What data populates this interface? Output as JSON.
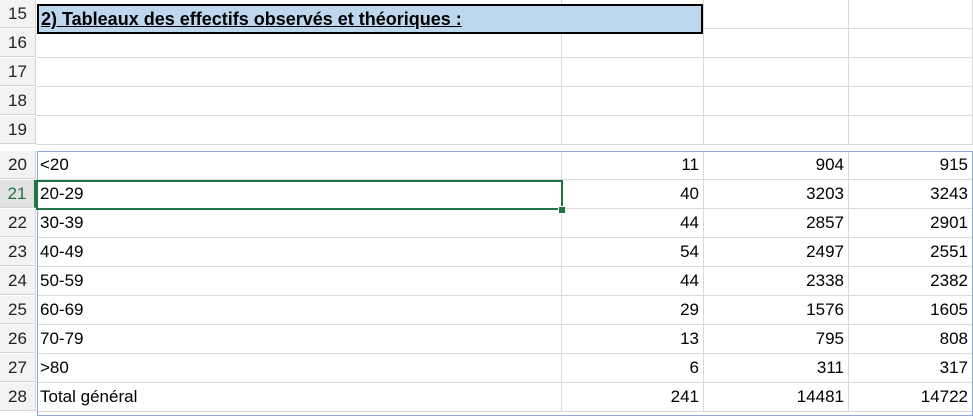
{
  "title": "2) Tableaux des effectifs observés et théoriques :",
  "empty_rows": [
    "15",
    "16",
    "17",
    "18",
    "19"
  ],
  "table_rows": [
    {
      "row": "20",
      "label": "<20",
      "a": "11",
      "b": "904",
      "c": "915"
    },
    {
      "row": "21",
      "label": "20-29",
      "a": "40",
      "b": "3203",
      "c": "3243"
    },
    {
      "row": "22",
      "label": "30-39",
      "a": "44",
      "b": "2857",
      "c": "2901"
    },
    {
      "row": "23",
      "label": "40-49",
      "a": "54",
      "b": "2497",
      "c": "2551"
    },
    {
      "row": "24",
      "label": "50-59",
      "a": "44",
      "b": "2338",
      "c": "2382"
    },
    {
      "row": "25",
      "label": "60-69",
      "a": "29",
      "b": "1576",
      "c": "1605"
    },
    {
      "row": "26",
      "label": "70-79",
      "a": "13",
      "b": "795",
      "c": "808"
    },
    {
      "row": "27",
      "label": ">80",
      "a": "6",
      "b": "311",
      "c": "317"
    },
    {
      "row": "28",
      "label": "Total général",
      "a": "241",
      "b": "14481",
      "c": "14722"
    }
  ],
  "active_row": "21",
  "colors": {
    "title_fill": "#bdd7ee",
    "selection": "#217346",
    "table_border": "#8ea9db"
  }
}
